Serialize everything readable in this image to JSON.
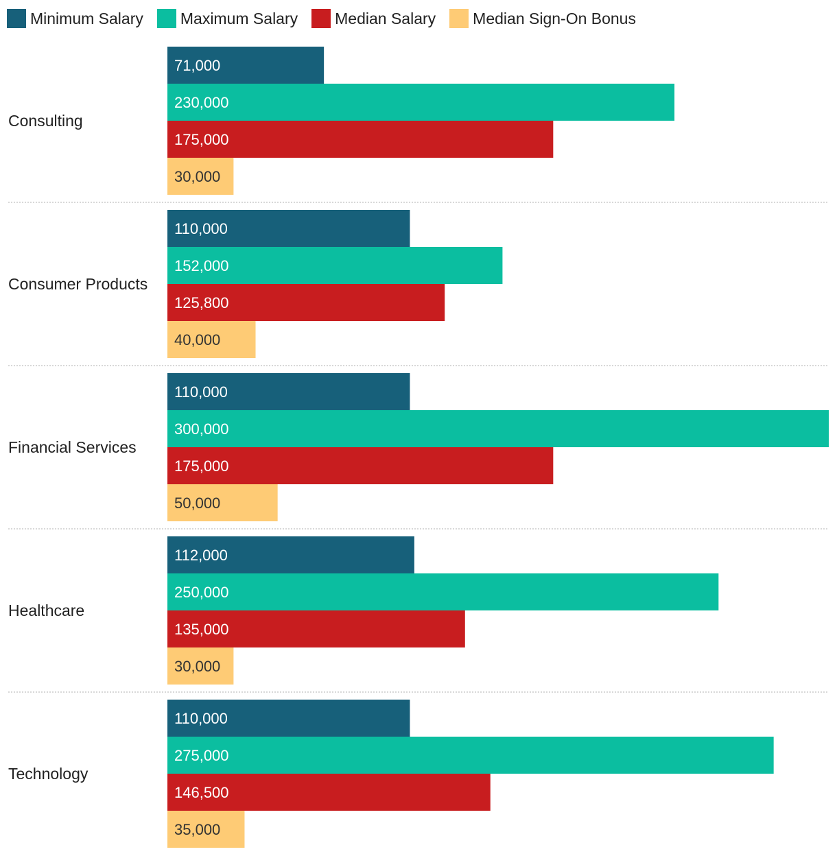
{
  "chart_data": {
    "type": "bar",
    "orientation": "horizontal",
    "title": "",
    "xlabel": "",
    "ylabel": "",
    "xlim": [
      0,
      300000
    ],
    "categories": [
      "Consulting",
      "Consumer Products",
      "Financial Services",
      "Healthcare",
      "Technology"
    ],
    "series": [
      {
        "name": "Minimum Salary",
        "color": "#17607A",
        "values": [
          71000,
          110000,
          110000,
          112000,
          110000
        ],
        "labels": [
          "71,000",
          "110,000",
          "110,000",
          "112,000",
          "110,000"
        ]
      },
      {
        "name": "Maximum Salary",
        "color": "#0BBEA0",
        "values": [
          230000,
          152000,
          300000,
          250000,
          275000
        ],
        "labels": [
          "230,000",
          "152,000",
          "300,000",
          "250,000",
          "275,000"
        ]
      },
      {
        "name": "Median Salary",
        "color": "#C81D1F",
        "values": [
          175000,
          125800,
          175000,
          135000,
          146500
        ],
        "labels": [
          "175,000",
          "125,800",
          "175,000",
          "135,000",
          "146,500"
        ]
      },
      {
        "name": "Median Sign-On Bonus",
        "color": "#FECB75",
        "values": [
          30000,
          40000,
          50000,
          30000,
          35000
        ],
        "labels": [
          "30,000",
          "40,000",
          "50,000",
          "30,000",
          "35,000"
        ]
      }
    ],
    "legend_position": "top-left",
    "grid": false
  },
  "colors": {
    "label_on_dark": "#FFFFFF",
    "label_on_light": "#333333",
    "separator": "#CCCCCC",
    "category_text": "#222222"
  }
}
